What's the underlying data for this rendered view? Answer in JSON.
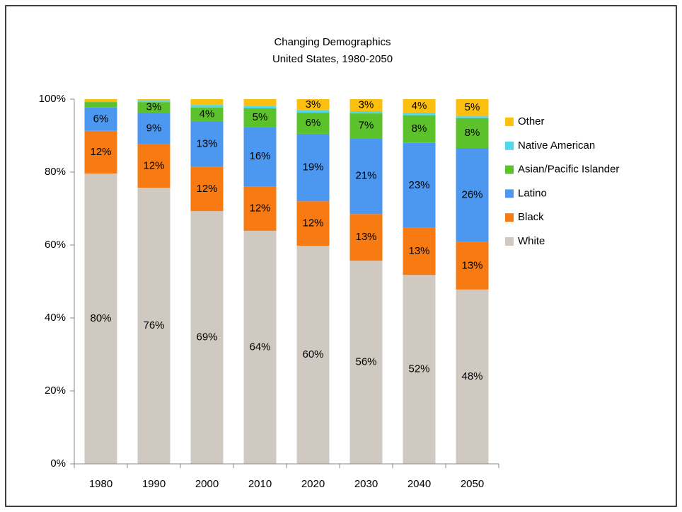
{
  "chart_data": {
    "type": "stacked_bar",
    "title": "Changing Demographics",
    "subtitle": "United States, 1980-2050",
    "categories": [
      "1980",
      "1990",
      "2000",
      "2010",
      "2020",
      "2030",
      "2040",
      "2050"
    ],
    "series": [
      {
        "name": "White",
        "color": "#d0c9c1",
        "values": [
          79.6,
          75.7,
          69.3,
          63.9,
          59.8,
          55.7,
          51.8,
          47.8
        ],
        "value_labels": [
          "80%",
          "76%",
          "69%",
          "64%",
          "60%",
          "56%",
          "52%",
          "48%"
        ]
      },
      {
        "name": "Black",
        "color": "#f77b12",
        "values": [
          11.7,
          11.9,
          12.1,
          12.2,
          12.2,
          12.8,
          12.9,
          13.0
        ],
        "value_labels": [
          "12%",
          "12%",
          "12%",
          "12%",
          "12%",
          "13%",
          "13%",
          "13%"
        ]
      },
      {
        "name": "Latino",
        "color": "#4c97f0",
        "values": [
          6.4,
          8.7,
          12.6,
          16.3,
          18.5,
          20.8,
          23.3,
          25.8
        ],
        "value_labels": [
          "6%",
          "9%",
          "13%",
          "16%",
          "19%",
          "21%",
          "23%",
          "26%"
        ]
      },
      {
        "name": "Asian/Pacific Islander",
        "color": "#5cc22c",
        "values": [
          1.5,
          2.9,
          3.7,
          5.1,
          5.8,
          6.8,
          7.6,
          8.2
        ],
        "value_labels": [
          null,
          "3%",
          "4%",
          "5%",
          "6%",
          "7%",
          "8%",
          "8%"
        ]
      },
      {
        "name": "Native American",
        "color": "#52d6e8",
        "values": [
          0.2,
          0.4,
          0.7,
          0.6,
          0.6,
          0.6,
          0.6,
          0.5
        ],
        "value_labels": [
          null,
          null,
          null,
          null,
          null,
          null,
          null,
          null
        ]
      },
      {
        "name": "Other",
        "color": "#fbbf0f",
        "values": [
          0.6,
          0.4,
          1.6,
          1.9,
          3.1,
          3.3,
          3.8,
          4.7
        ],
        "value_labels": [
          null,
          null,
          null,
          null,
          "3%",
          "3%",
          "4%",
          "5%"
        ]
      }
    ],
    "ylim": [
      0,
      100
    ],
    "yticks": [
      {
        "value": 0,
        "label": "0%"
      },
      {
        "value": 20,
        "label": "20%"
      },
      {
        "value": 40,
        "label": "40%"
      },
      {
        "value": 60,
        "label": "60%"
      },
      {
        "value": 80,
        "label": "80%"
      },
      {
        "value": 100,
        "label": "100%"
      }
    ],
    "legend": "right"
  }
}
